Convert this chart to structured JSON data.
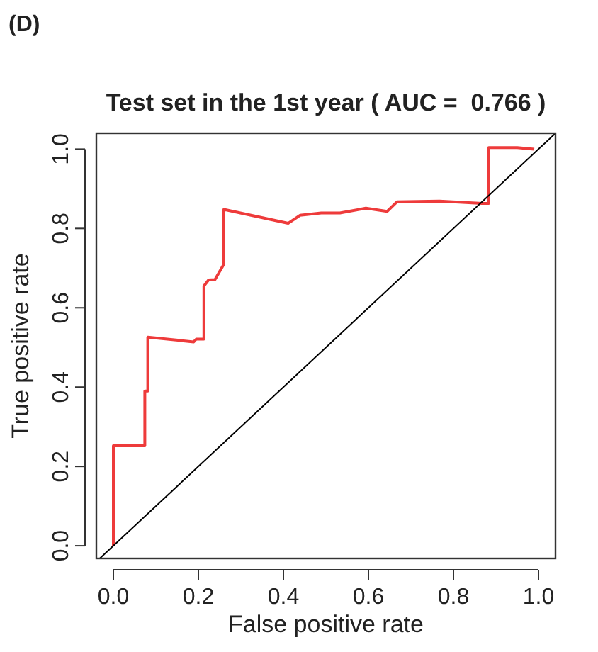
{
  "chart_data": {
    "type": "line",
    "title": "Test set in the 1st year ( AUC =  0.766 )",
    "xlabel": "False positive rate",
    "ylabel": "True positive rate",
    "annotations": [
      "(D)"
    ],
    "xlim": [
      -0.04,
      1.04
    ],
    "ylim": [
      -0.032,
      1.04
    ],
    "xticks": [
      {
        "value": 0,
        "label": "0.0"
      },
      {
        "value": 0.2,
        "label": "0.2"
      },
      {
        "value": 0.4,
        "label": "0.4"
      },
      {
        "value": 0.6,
        "label": "0.6"
      },
      {
        "value": 0.8,
        "label": "0.8"
      },
      {
        "value": 1,
        "label": "1.0"
      }
    ],
    "yticks": [
      {
        "value": 0,
        "label": "0.0"
      },
      {
        "value": 0.2,
        "label": "0.2"
      },
      {
        "value": 0.4,
        "label": "0.4"
      },
      {
        "value": 0.6,
        "label": "0.6"
      },
      {
        "value": 0.8,
        "label": "0.8"
      },
      {
        "value": 1,
        "label": "1.0"
      }
    ],
    "grid": false,
    "marker": "none",
    "series": [
      {
        "color": "#ee3b3b",
        "x": [
          0,
          0,
          0.074,
          0.074,
          0.081,
          0.081,
          0.189,
          0.195,
          0.213,
          0.213,
          0.224,
          0.239,
          0.259,
          0.26,
          0.411,
          0.439,
          0.489,
          0.533,
          0.594,
          0.644,
          0.667,
          0.767,
          0.867,
          0.883,
          0.883,
          0.95,
          0.99
        ],
        "values": [
          0,
          0.252,
          0.252,
          0.39,
          0.39,
          0.526,
          0.514,
          0.521,
          0.521,
          0.655,
          0.67,
          0.671,
          0.708,
          0.848,
          0.813,
          0.833,
          0.839,
          0.839,
          0.851,
          0.843,
          0.867,
          0.869,
          0.863,
          0.863,
          1.004,
          1.004,
          1.0
        ]
      },
      {
        "color": "#000000",
        "x": [
          -0.032,
          1.04
        ],
        "values": [
          -0.032,
          1.04
        ]
      }
    ]
  }
}
